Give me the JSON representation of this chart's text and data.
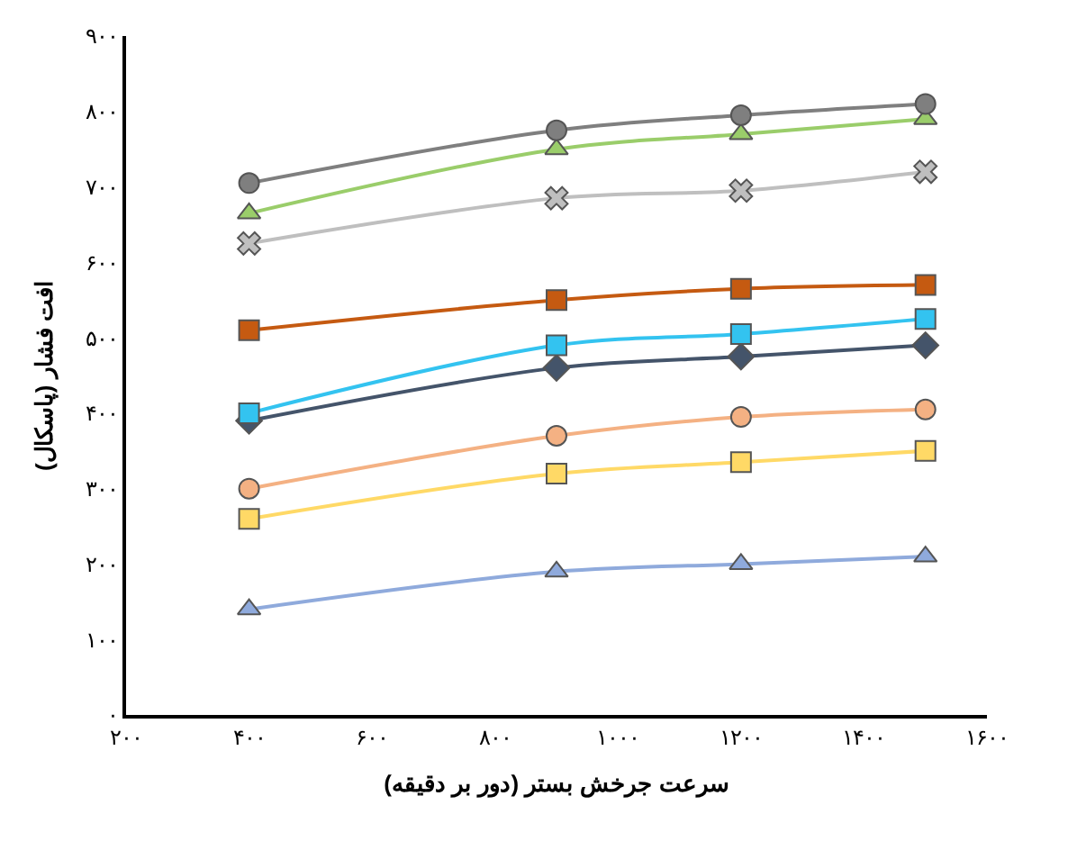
{
  "chart_data": {
    "type": "line",
    "xlabel": "سرعت جرخش بستر (دور بر دقیقه)",
    "ylabel": "افت فشار (پاسکال)",
    "x": [
      400,
      900,
      1200,
      1500
    ],
    "xlim": [
      200,
      1600
    ],
    "xticks": [
      {
        "value": 200,
        "label": "۲۰۰"
      },
      {
        "value": 400,
        "label": "۴۰۰"
      },
      {
        "value": 600,
        "label": "۶۰۰"
      },
      {
        "value": 800,
        "label": "۸۰۰"
      },
      {
        "value": 1000,
        "label": "۱۰۰۰"
      },
      {
        "value": 1200,
        "label": "۱۲۰۰"
      },
      {
        "value": 1400,
        "label": "۱۴۰۰"
      },
      {
        "value": 1600,
        "label": "۱۶۰۰"
      }
    ],
    "ylim": [
      0,
      900
    ],
    "yticks": [
      {
        "value": 0,
        "label": "۰"
      },
      {
        "value": 100,
        "label": "۱۰۰"
      },
      {
        "value": 200,
        "label": "۲۰۰"
      },
      {
        "value": 300,
        "label": "۳۰۰"
      },
      {
        "value": 400,
        "label": "۴۰۰"
      },
      {
        "value": 500,
        "label": "۵۰۰"
      },
      {
        "value": 600,
        "label": "۶۰۰"
      },
      {
        "value": 700,
        "label": "۷۰۰"
      },
      {
        "value": 800,
        "label": "۸۰۰"
      },
      {
        "value": 900,
        "label": "۹۰۰"
      }
    ],
    "series": [
      {
        "color": "#7f7f7f",
        "marker": "circle",
        "values": [
          705,
          775,
          795,
          810
        ]
      },
      {
        "color": "#9acd6a",
        "marker": "triangle",
        "values": [
          665,
          750,
          770,
          790
        ]
      },
      {
        "color": "#bfbfbf",
        "marker": "cross",
        "values": [
          625,
          685,
          695,
          720
        ]
      },
      {
        "color": "#c55a11",
        "marker": "square",
        "values": [
          510,
          550,
          565,
          570
        ]
      },
      {
        "color": "#33c3f0",
        "marker": "square",
        "values": [
          400,
          490,
          505,
          525
        ]
      },
      {
        "color": "#44546a",
        "marker": "diamond",
        "values": [
          390,
          460,
          475,
          490
        ]
      },
      {
        "color": "#f4b183",
        "marker": "circle",
        "values": [
          300,
          370,
          395,
          405
        ]
      },
      {
        "color": "#ffd966",
        "marker": "square",
        "values": [
          260,
          320,
          335,
          350
        ]
      },
      {
        "color": "#8faadc",
        "marker": "triangle",
        "values": [
          140,
          190,
          200,
          210
        ]
      }
    ]
  }
}
